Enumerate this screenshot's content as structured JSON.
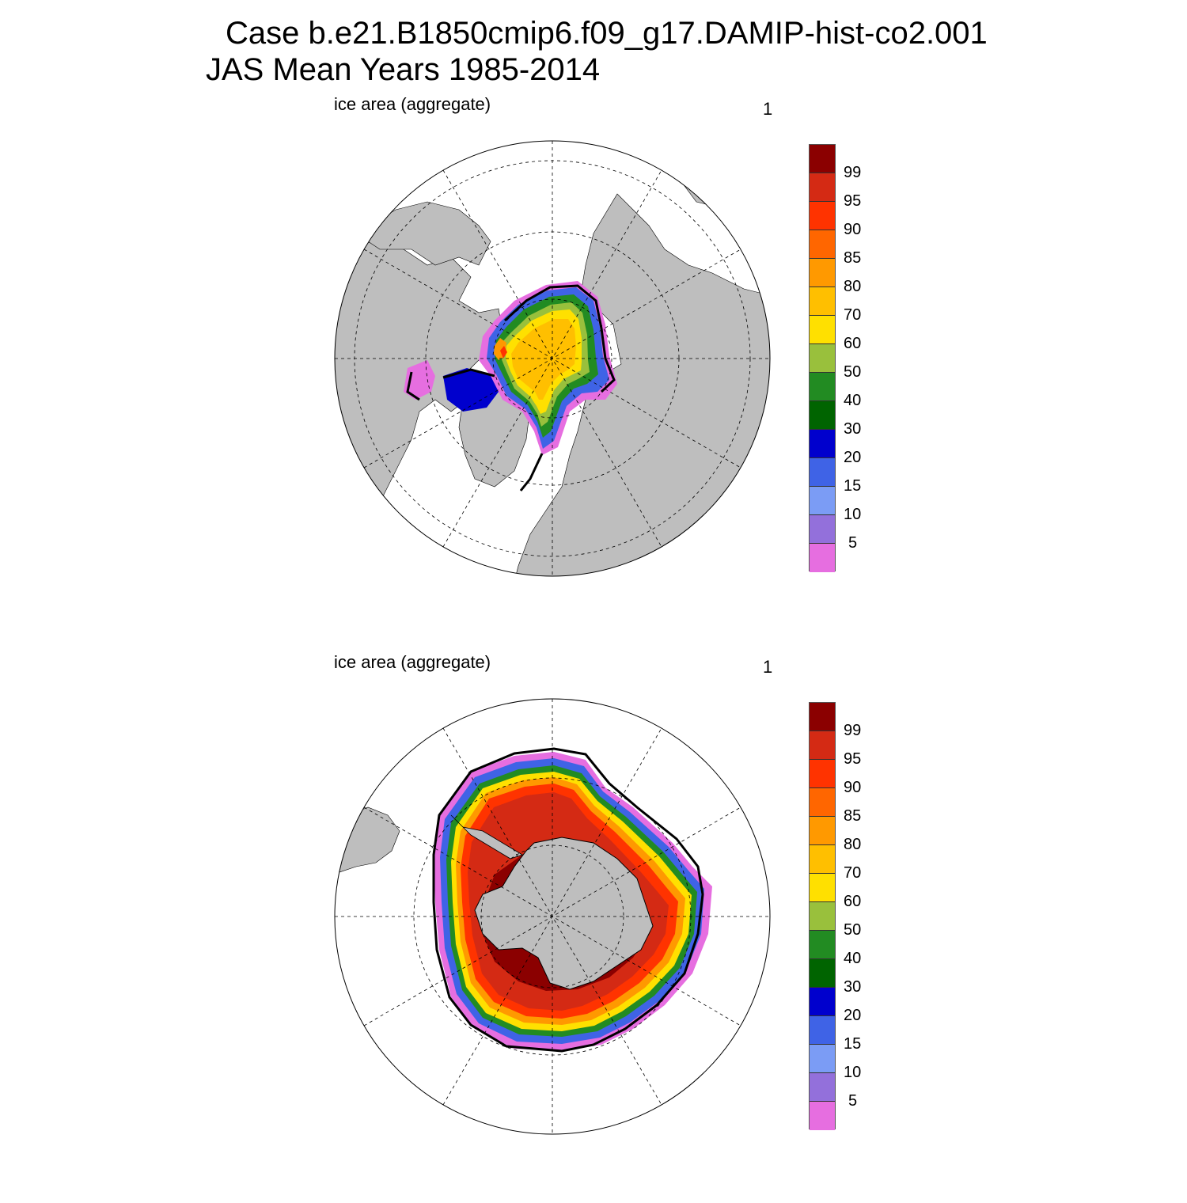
{
  "header": {
    "line1": "Case b.e21.B1850cmip6.f09_g17.DAMIP-hist-co2.001",
    "line2": "JAS Mean   Years 1985-2014"
  },
  "panels": [
    {
      "id": "nh",
      "left_label": "ice area  (aggregate)",
      "right_label": "1"
    },
    {
      "id": "sh",
      "left_label": "ice area  (aggregate)",
      "right_label": "1"
    }
  ],
  "colorbar": {
    "labels": [
      "99",
      "95",
      "90",
      "85",
      "80",
      "70",
      "60",
      "50",
      "40",
      "30",
      "20",
      "15",
      "10",
      "5"
    ],
    "colors": [
      "#8b0000",
      "#d42a14",
      "#ff3300",
      "#ff6600",
      "#ff9900",
      "#ffbf00",
      "#ffe000",
      "#99c03c",
      "#228b22",
      "#006400",
      "#0000cd",
      "#3f63e6",
      "#7b9cf5",
      "#9370db",
      "#e66ee0"
    ]
  },
  "colors": {
    "land": "#bebebe",
    "ocean": "#ffffff",
    "outline": "#000000"
  }
}
